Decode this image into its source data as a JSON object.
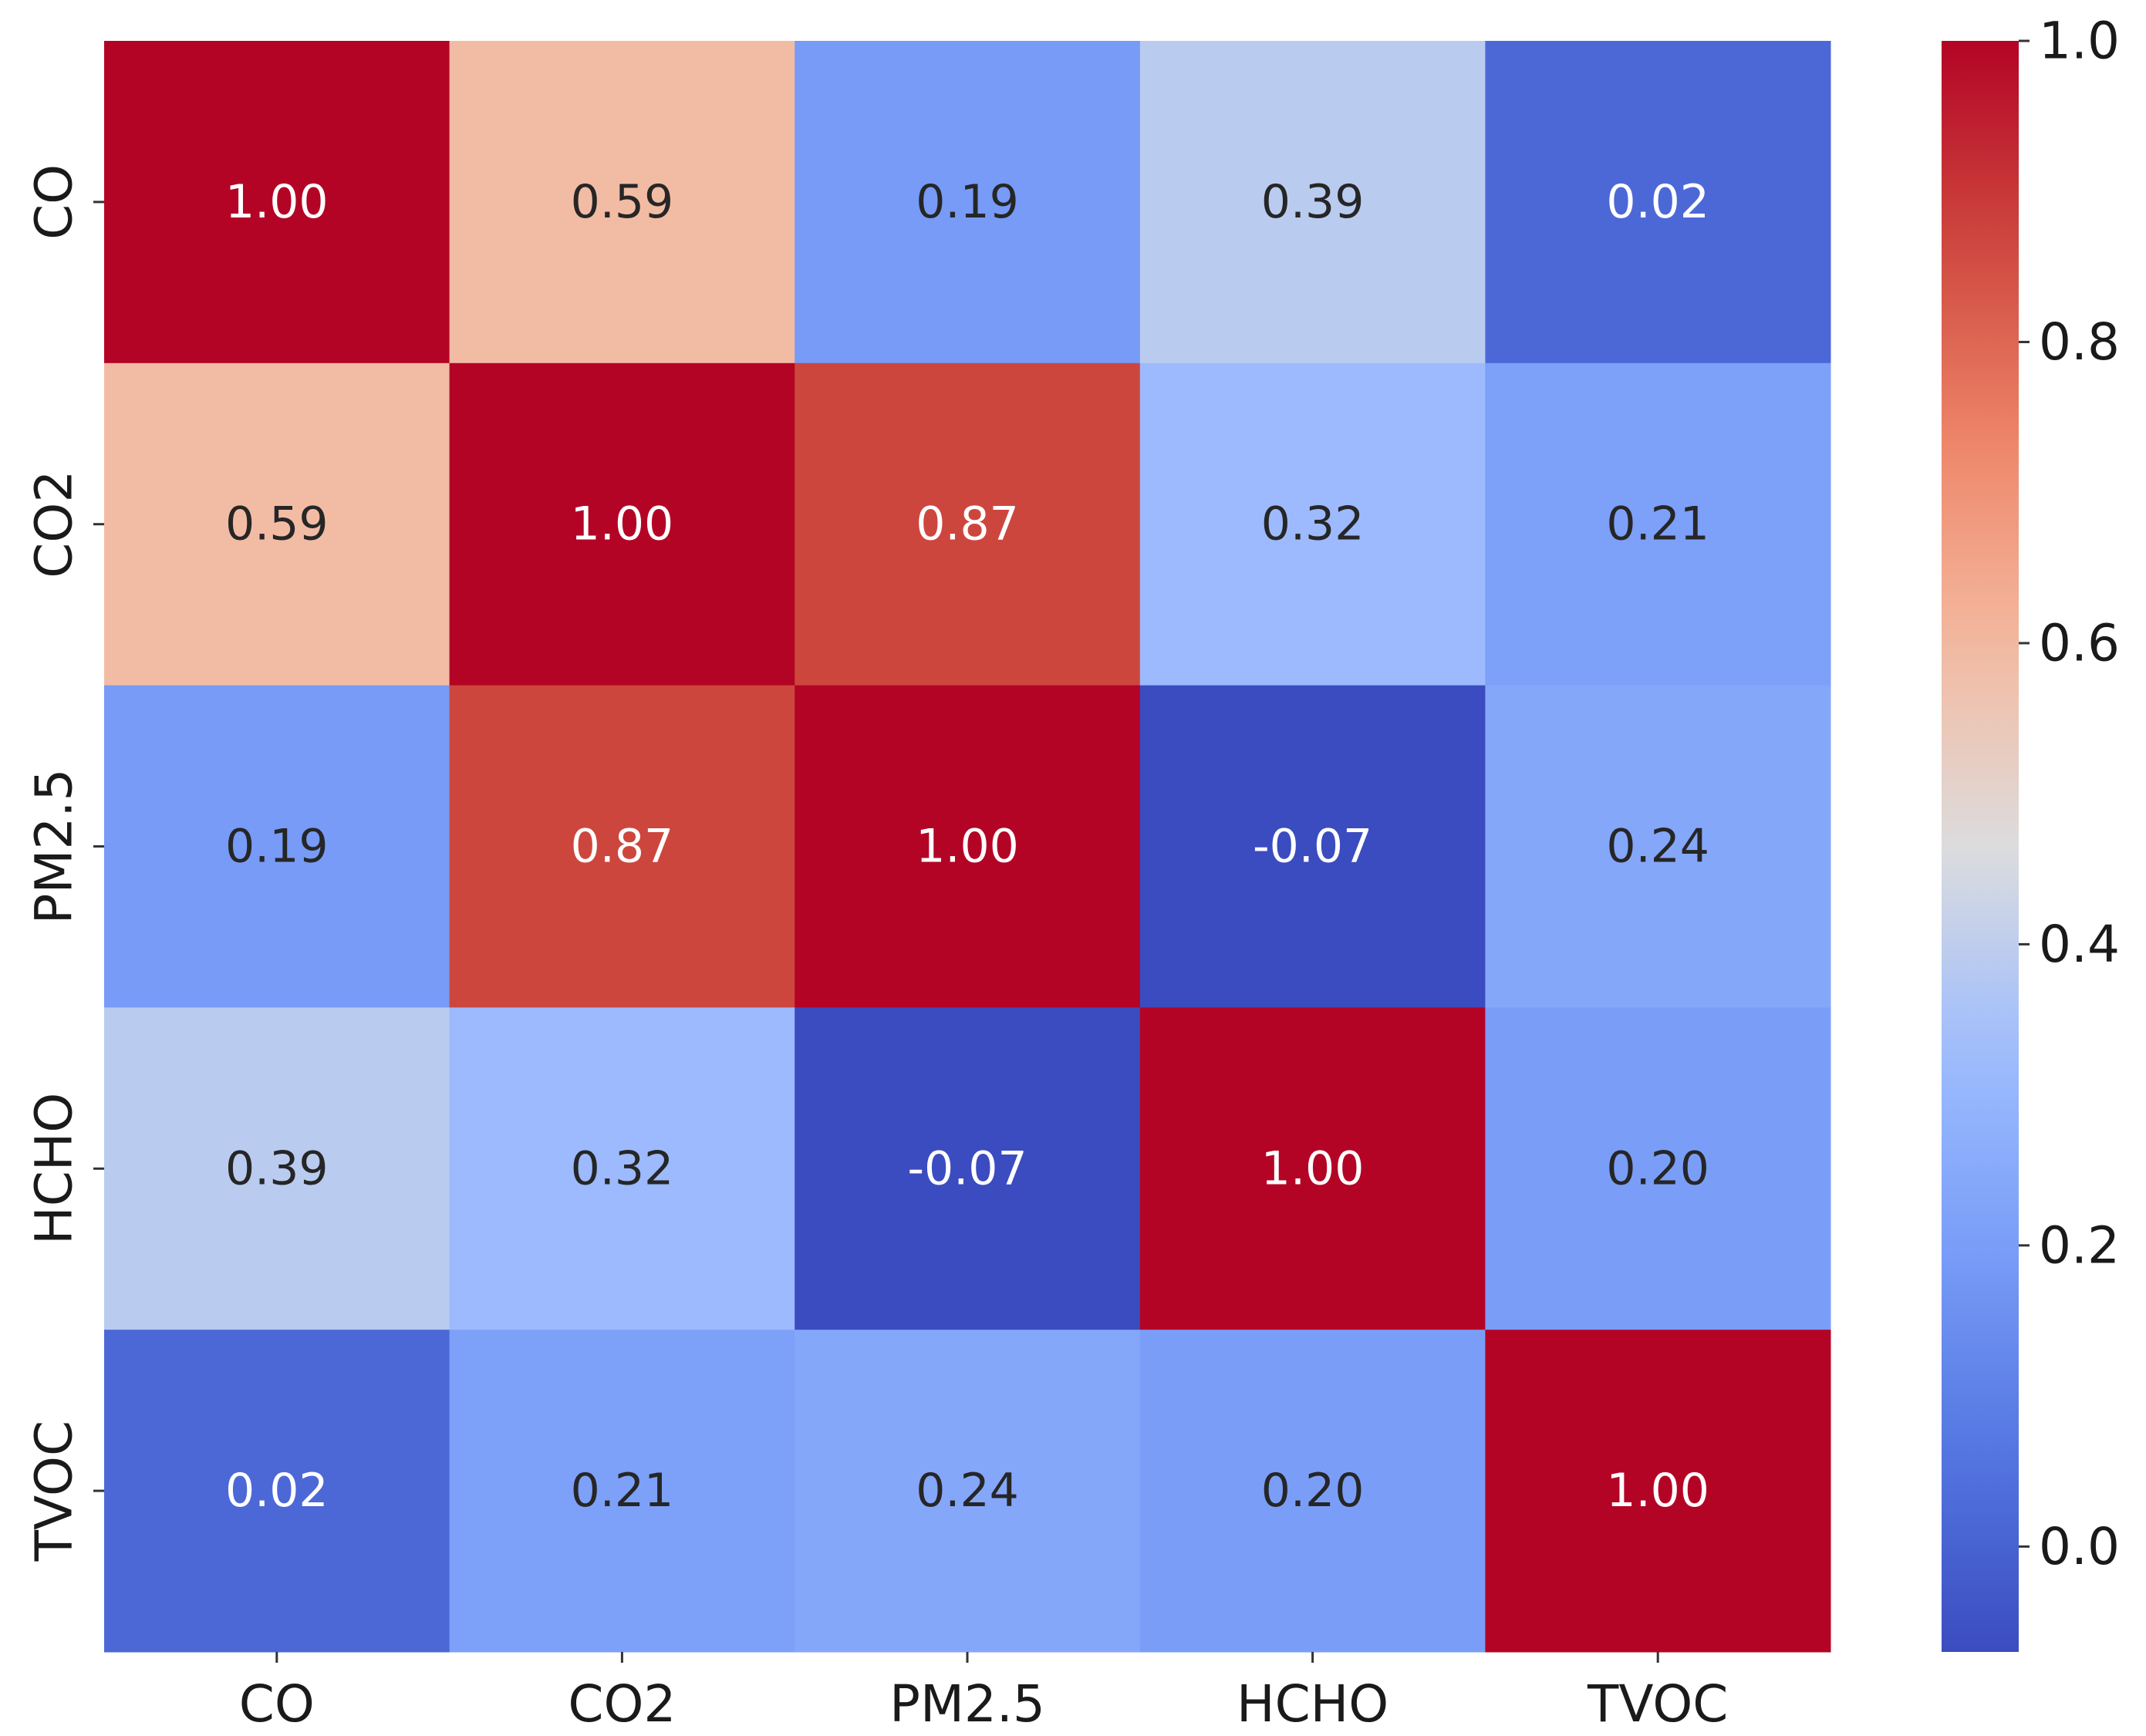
{
  "chart_data": {
    "type": "heatmap",
    "title": "",
    "xlabel": "",
    "ylabel": "",
    "x_categories": [
      "CO",
      "CO2",
      "PM2.5",
      "HCHO",
      "TVOC"
    ],
    "y_categories": [
      "CO",
      "CO2",
      "PM2.5",
      "HCHO",
      "TVOC"
    ],
    "values": [
      [
        1.0,
        0.59,
        0.19,
        0.39,
        0.02
      ],
      [
        0.59,
        1.0,
        0.87,
        0.32,
        0.21
      ],
      [
        0.19,
        0.87,
        1.0,
        -0.07,
        0.24
      ],
      [
        0.39,
        0.32,
        -0.07,
        1.0,
        0.2
      ],
      [
        0.02,
        0.21,
        0.24,
        0.2,
        1.0
      ]
    ],
    "annotations": [
      [
        "1.00",
        "0.59",
        "0.19",
        "0.39",
        "0.02"
      ],
      [
        "0.59",
        "1.00",
        "0.87",
        "0.32",
        "0.21"
      ],
      [
        "0.19",
        "0.87",
        "1.00",
        "-0.07",
        "0.24"
      ],
      [
        "0.39",
        "0.32",
        "-0.07",
        "1.00",
        "0.20"
      ],
      [
        "0.02",
        "0.21",
        "0.24",
        "0.20",
        "1.00"
      ]
    ],
    "colormap": "coolwarm",
    "value_range": [
      -0.07,
      1.0
    ],
    "colorbar": {
      "ticks": [
        0.0,
        0.2,
        0.4,
        0.6,
        0.8,
        1.0
      ],
      "tick_labels": [
        "0.0",
        "0.2",
        "0.4",
        "0.6",
        "0.8",
        "1.0"
      ],
      "placement": "right"
    },
    "colors": {
      "low": "#3b4cc0",
      "mid": "#dddddd",
      "high": "#b40426",
      "text_dark": "#262626",
      "text_light": "#ffffff"
    }
  }
}
